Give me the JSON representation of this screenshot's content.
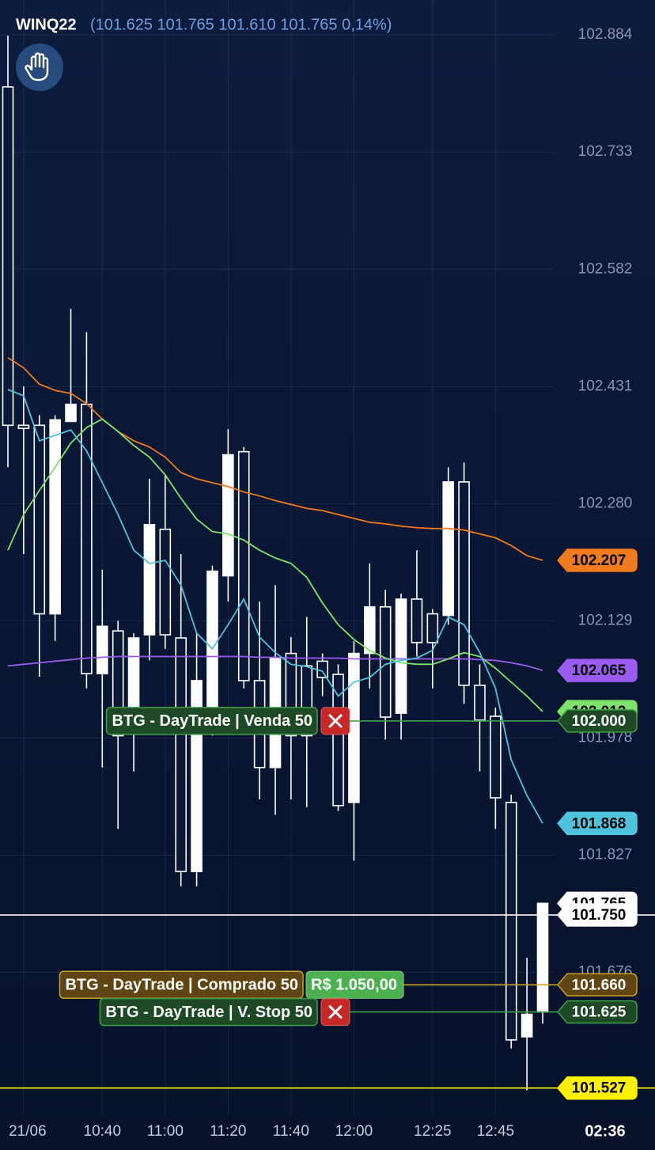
{
  "chart_data": {
    "type": "candlestick",
    "symbol": "WINQ22",
    "ohlc_text": "(101.625 101.765 101.610 101.765 0,14%)",
    "countdown": "02:36",
    "categories": [
      null,
      "21/06",
      null,
      null,
      null,
      null,
      "10:40",
      null,
      null,
      null,
      "11:00",
      null,
      null,
      null,
      "11:20",
      null,
      null,
      null,
      "11:40",
      null,
      null,
      null,
      "12:00",
      null,
      null,
      null,
      null,
      "12:25",
      null,
      null,
      null,
      "12:45",
      null,
      null,
      null
    ],
    "open": [
      102.817,
      102.381,
      102.381,
      102.138,
      102.386,
      102.408,
      102.061,
      102.116,
      102.011,
      102.111,
      102.247,
      102.107,
      101.806,
      102.011,
      102.187,
      102.347,
      102.052,
      101.94,
      102.087,
      102.071,
      102.077,
      102.06,
      101.895,
      102.087,
      102.147,
      102.01,
      102.157,
      102.138,
      102.136,
      102.308,
      102.046,
      102.006,
      101.895,
      101.593,
      101.625
    ],
    "high": [
      102.883,
      102.431,
      102.394,
      102.394,
      102.531,
      102.501,
      102.195,
      102.129,
      102.113,
      102.312,
      102.317,
      102.215,
      102.113,
      102.2,
      102.376,
      102.353,
      102.154,
      102.175,
      102.108,
      102.134,
      102.087,
      102.073,
      102.103,
      102.203,
      102.169,
      102.164,
      102.22,
      102.144,
      102.327,
      102.333,
      102.073,
      102.017,
      101.905,
      101.695,
      101.765
    ],
    "low": [
      102.327,
      102.215,
      102.057,
      102.103,
      102.386,
      102.042,
      101.94,
      101.861,
      101.935,
      102.078,
      102.093,
      101.787,
      101.787,
      101.981,
      102.154,
      102.042,
      101.899,
      101.879,
      101.899,
      101.889,
      102.032,
      101.884,
      101.82,
      102.042,
      101.976,
      101.976,
      102.083,
      102.042,
      102.124,
      102.022,
      101.935,
      101.861,
      101.578,
      101.524,
      101.61
    ],
    "close": [
      102.381,
      102.377,
      102.138,
      102.388,
      102.408,
      102.061,
      102.122,
      101.981,
      102.107,
      102.253,
      102.111,
      101.806,
      102.052,
      102.193,
      102.343,
      102.052,
      101.94,
      102.081,
      101.981,
      101.981,
      102.056,
      101.891,
      102.087,
      102.147,
      102.005,
      102.157,
      102.101,
      102.101,
      102.308,
      102.046,
      102.001,
      101.901,
      101.589,
      101.622,
      101.765
    ],
    "series": [
      {
        "color": "#f07a1e",
        "values": [
          102.468,
          102.455,
          102.434,
          102.426,
          102.422,
          102.409,
          102.389,
          102.373,
          102.361,
          102.353,
          102.34,
          102.32,
          102.312,
          102.307,
          102.302,
          102.295,
          102.29,
          102.284,
          102.279,
          102.274,
          102.271,
          102.266,
          102.261,
          102.256,
          102.254,
          102.251,
          102.249,
          102.248,
          102.248,
          102.246,
          102.241,
          102.236,
          102.226,
          102.213,
          102.207
        ]
      },
      {
        "color": "#9a5cf0",
        "values": [
          102.071,
          102.073,
          102.075,
          102.077,
          102.079,
          102.081,
          102.082,
          102.083,
          102.083,
          102.083,
          102.083,
          102.083,
          102.083,
          102.083,
          102.083,
          102.083,
          102.082,
          102.082,
          102.081,
          102.081,
          102.081,
          102.081,
          102.08,
          102.08,
          102.08,
          102.08,
          102.08,
          102.08,
          102.08,
          102.08,
          102.079,
          102.078,
          102.075,
          102.071,
          102.065
        ]
      },
      {
        "color": "#7de36a",
        "values": [
          102.22,
          102.266,
          102.297,
          102.327,
          102.358,
          102.378,
          102.389,
          102.373,
          102.355,
          102.34,
          102.317,
          102.287,
          102.26,
          102.244,
          102.241,
          102.233,
          102.22,
          102.21,
          102.203,
          102.185,
          102.152,
          102.124,
          102.105,
          102.091,
          102.081,
          102.075,
          102.073,
          102.073,
          102.08,
          102.088,
          102.083,
          102.068,
          102.05,
          102.032,
          102.012
        ]
      },
      {
        "color": "#4fc3dc",
        "values": [
          102.427,
          102.419,
          102.361,
          102.368,
          102.375,
          102.348,
          102.307,
          102.266,
          102.22,
          102.203,
          102.207,
          102.175,
          102.113,
          102.093,
          102.124,
          102.157,
          102.108,
          102.088,
          102.073,
          102.07,
          102.064,
          102.032,
          102.05,
          102.056,
          102.073,
          102.078,
          102.081,
          102.091,
          102.134,
          102.124,
          102.088,
          102.042,
          101.95,
          101.904,
          101.868
        ]
      }
    ],
    "ylim": [
      101.491,
      102.929
    ],
    "yticks": [
      102.884,
      102.733,
      102.582,
      102.431,
      {
        "value": 102.28,
        "label": "102.280"
      },
      102.129,
      101.978,
      101.827,
      101.676
    ],
    "price_lines": [
      {
        "value": 101.75,
        "label": "101.750",
        "color": "#ffffff",
        "text_color": "#000000"
      },
      {
        "value": 101.527,
        "color": "#fff200",
        "text_color": "#000000"
      },
      {
        "value": 102,
        "label": "102.000",
        "color": "#1d4a24",
        "line_color": "#3f9f4a",
        "text_color": "#ffffff",
        "order": "BTG - DayTrade | Venda 50",
        "cancel": true
      },
      {
        "value": 101.66,
        "label": "101.660",
        "color": "#5e4512",
        "line_color": "#c9a227",
        "text_color": "#ffffff",
        "order": "BTG - DayTrade | Comprado 50",
        "pnl": "R$ 1.050,00"
      },
      {
        "value": 101.625,
        "color": "#1d4a24",
        "line_color": "#3f9f4a",
        "text_color": "#ffffff",
        "order": "BTG - DayTrade | V. Stop 50",
        "cancel": true
      }
    ]
  }
}
